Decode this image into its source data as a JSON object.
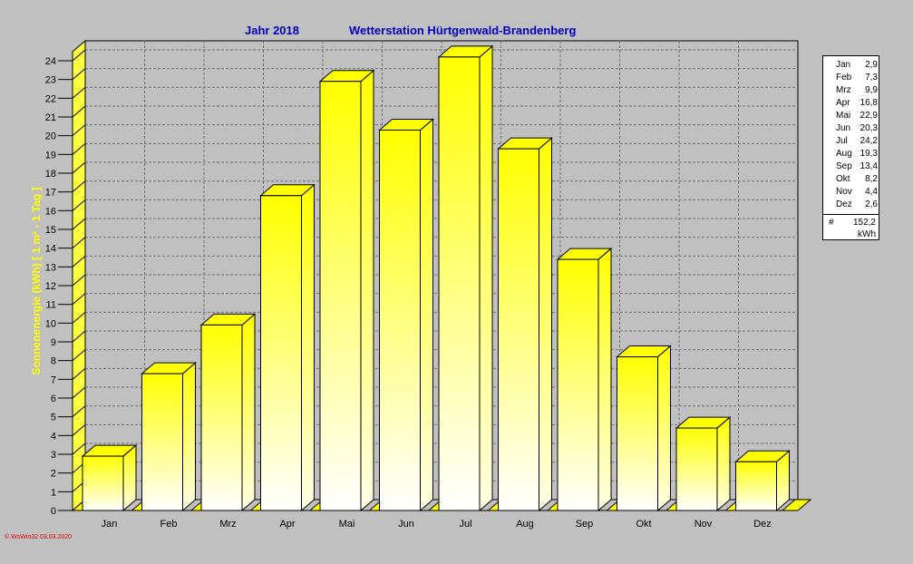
{
  "title": {
    "year": "Jahr  2018",
    "station": "Wetterstation Hürtgenwald-Brandenberg"
  },
  "chart_data": {
    "type": "bar",
    "categories": [
      "Jan",
      "Feb",
      "Mrz",
      "Apr",
      "Mai",
      "Jun",
      "Jul",
      "Aug",
      "Sep",
      "Okt",
      "Nov",
      "Dez"
    ],
    "values": [
      2.9,
      7.3,
      9.9,
      16.8,
      22.9,
      20.3,
      24.2,
      19.3,
      13.4,
      8.2,
      4.4,
      2.6
    ],
    "ylabel": "Sonnenenergie  (kWh)  [ 1 m²  -  1 Tag ]",
    "ylim": [
      0,
      24
    ],
    "yticks": [
      "0",
      "1",
      "2",
      "3",
      "4",
      "5",
      "6",
      "7",
      "8",
      "9",
      "10",
      "11",
      "12",
      "13",
      "14",
      "15",
      "16",
      "17",
      "18",
      "19",
      "20",
      "21",
      "22",
      "23",
      "24"
    ],
    "grid": true,
    "colors": {
      "bar_top": "#ffff00",
      "bar_bottom": "#ffffff",
      "bar_outline": "#000000",
      "grid": "#808080"
    }
  },
  "legend": {
    "rows": [
      {
        "month": "Jan",
        "value": "2,9"
      },
      {
        "month": "Feb",
        "value": "7,3"
      },
      {
        "month": "Mrz",
        "value": "9,9"
      },
      {
        "month": "Apr",
        "value": "16,8"
      },
      {
        "month": "Mai",
        "value": "22,9"
      },
      {
        "month": "Jun",
        "value": "20,3"
      },
      {
        "month": "Jul",
        "value": "24,2"
      },
      {
        "month": "Aug",
        "value": "19,3"
      },
      {
        "month": "Sep",
        "value": "13,4"
      },
      {
        "month": "Okt",
        "value": "8,2"
      },
      {
        "month": "Nov",
        "value": "4,4"
      },
      {
        "month": "Dez",
        "value": "2,6"
      }
    ],
    "total_symbol": "#",
    "total": "152,2",
    "unit": "kWh"
  },
  "footer": "© WsWin32  03.03.2020"
}
